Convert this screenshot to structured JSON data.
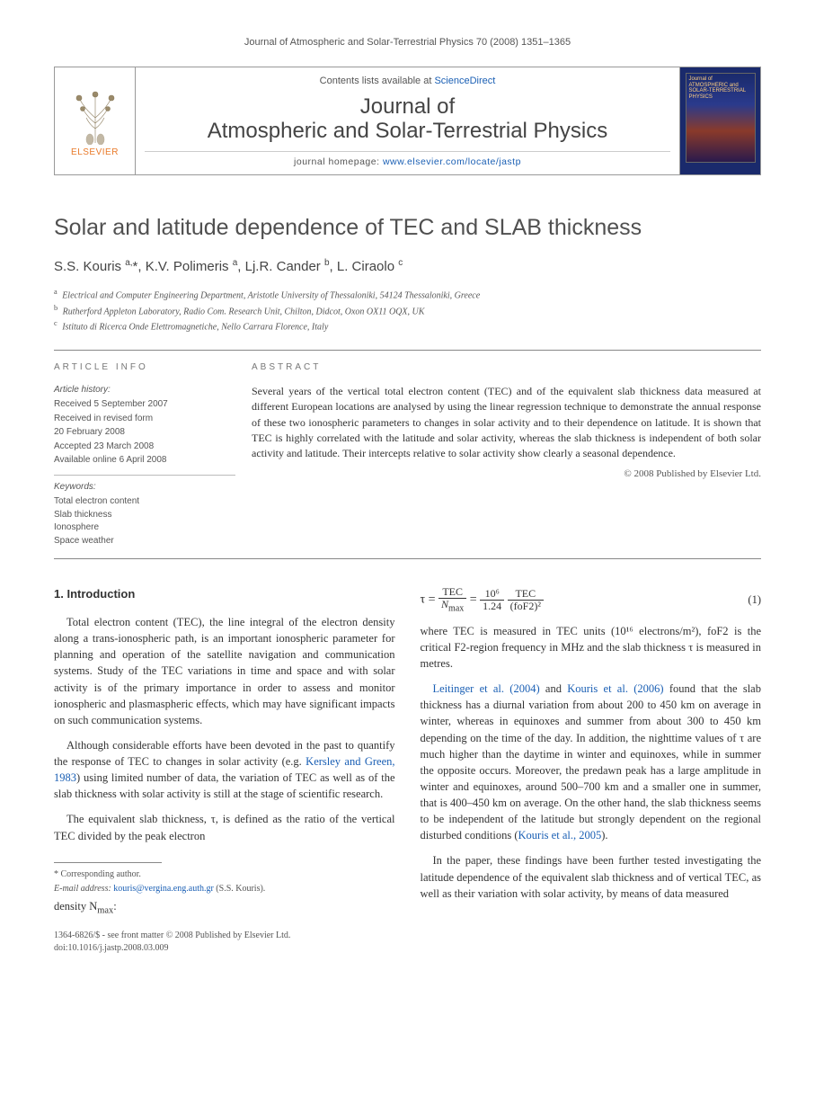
{
  "running_head": "Journal of Atmospheric and Solar-Terrestrial Physics 70 (2008) 1351–1365",
  "masthead": {
    "elsevier_label": "ELSEVIER",
    "contents_prefix": "Contents lists available at ",
    "contents_link": "ScienceDirect",
    "journal_line1": "Journal of",
    "journal_line2": "Atmospheric and Solar-Terrestrial Physics",
    "homepage_prefix": "journal homepage: ",
    "homepage_url": "www.elsevier.com/locate/jastp",
    "cover_text": "Journal of ATMOSPHERIC and SOLAR-TERRESTRIAL PHYSICS"
  },
  "article": {
    "title": "Solar and latitude dependence of TEC and SLAB thickness",
    "authors_html": "S.S. Kouris <sup>a,</sup>*, K.V. Polimeris <sup>a</sup>, Lj.R. Cander <sup>b</sup>, L. Ciraolo <sup>c</sup>",
    "affiliations": [
      "Electrical and Computer Engineering Department, Aristotle University of Thessaloniki, 54124 Thessaloniki, Greece",
      "Rutherford Appleton Laboratory, Radio Com. Research Unit, Chilton, Didcot, Oxon OX11 OQX, UK",
      "Istituto di Ricerca Onde Elettromagnetiche, Nello Carrara Florence, Italy"
    ],
    "aff_markers": [
      "a",
      "b",
      "c"
    ]
  },
  "info": {
    "info_heading": "ARTICLE INFO",
    "history_label": "Article history:",
    "history": [
      "Received 5 September 2007",
      "Received in revised form",
      "20 February 2008",
      "Accepted 23 March 2008",
      "Available online 6 April 2008"
    ],
    "keywords_label": "Keywords:",
    "keywords": [
      "Total electron content",
      "Slab thickness",
      "Ionosphere",
      "Space weather"
    ]
  },
  "abstract": {
    "heading": "ABSTRACT",
    "text": "Several years of the vertical total electron content (TEC) and of the equivalent slab thickness data measured at different European locations are analysed by using the linear regression technique to demonstrate the annual response of these two ionospheric parameters to changes in solar activity and to their dependence on latitude. It is shown that TEC is highly correlated with the latitude and solar activity, whereas the slab thickness is independent of both solar activity and latitude. Their intercepts relative to solar activity show clearly a seasonal dependence.",
    "copyright": "© 2008 Published by Elsevier Ltd."
  },
  "body": {
    "section1_heading": "1. Introduction",
    "p1": "Total electron content (TEC), the line integral of the electron density along a trans-ionospheric path, is an important ionospheric parameter for planning and operation of the satellite navigation and communication systems. Study of the TEC variations in time and space and with solar activity is of the primary importance in order to assess and monitor ionospheric and plasmaspheric effects, which may have significant impacts on such communication systems.",
    "p2_pre": "Although considerable efforts have been devoted in the past to quantify the response of TEC to changes in solar activity (e.g. ",
    "p2_cite": "Kersley and Green, 1983",
    "p2_post": ") using limited number of data, the variation of TEC as well as of the slab thickness with solar activity is still at the stage of scientific research.",
    "p3": "The equivalent slab thickness, τ, is defined as the ratio of the vertical TEC divided by the peak electron",
    "p3_cont_label": "density N",
    "p3_cont_sub": "max",
    "p3_cont_colon": ":",
    "eq_num": "(1)",
    "p4": "where TEC is measured in TEC units (10¹⁶ electrons/m²), foF2 is the critical F2-region frequency in MHz and the slab thickness τ is measured in metres.",
    "p5_cite1": "Leitinger et al. (2004)",
    "p5_mid1": " and ",
    "p5_cite2": "Kouris et al. (2006)",
    "p5_rest": " found that the slab thickness has a diurnal variation from about 200 to 450 km on average in winter, whereas in equinoxes and summer from about 300 to 450 km depending on the time of the day. In addition, the nighttime values of τ are much higher than the daytime in winter and equinoxes, while in summer the opposite occurs. Moreover, the predawn peak has a large amplitude in winter and equinoxes, around 500–700 km and a smaller one in summer, that is 400–450 km on average. On the other hand, the slab thickness seems to be independent of the latitude but strongly dependent on the regional disturbed conditions (",
    "p5_cite3": "Kouris et al., 2005",
    "p5_end": ").",
    "p6": "In the paper, these findings have been further tested investigating the latitude dependence of the equivalent slab thickness and of vertical TEC, as well as their variation with solar activity, by means of data measured"
  },
  "equation": {
    "lhs": "τ =",
    "frac1_num": "TEC",
    "frac1_den": "Nmax",
    "eq_sign": "=",
    "frac2_num": "10⁶",
    "frac2_den": "1.24",
    "frac3_num": "TEC",
    "frac3_den": "(foF2)²"
  },
  "footnote": {
    "corr_label": "* Corresponding author.",
    "email_label": "E-mail address: ",
    "email": "kouris@vergina.eng.auth.gr",
    "email_suffix": " (S.S. Kouris)."
  },
  "footer": {
    "line1": "1364-6826/$ - see front matter © 2008 Published by Elsevier Ltd.",
    "line2": "doi:10.1016/j.jastp.2008.03.009"
  },
  "colors": {
    "link": "#1a5fb4",
    "elsevier_orange": "#e97a2a",
    "rule": "#888888",
    "text": "#333333"
  }
}
